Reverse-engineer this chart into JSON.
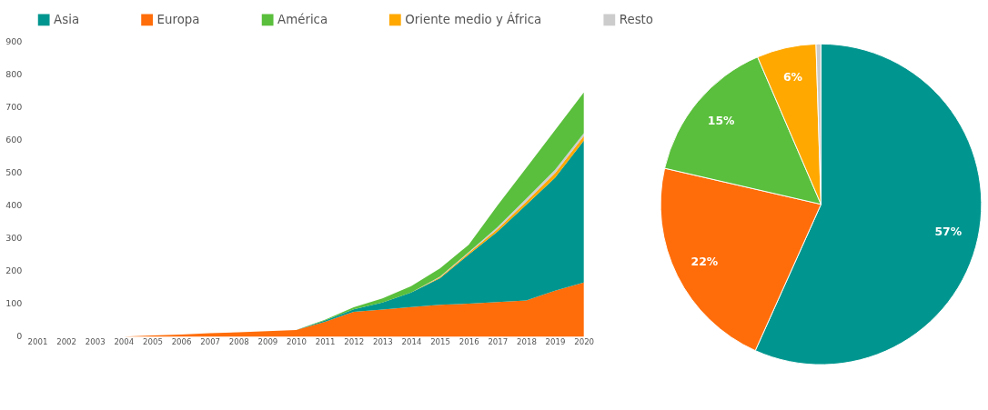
{
  "chart_data": [
    {
      "type": "area",
      "stacked": true,
      "x": [
        2001,
        2002,
        2003,
        2004,
        2005,
        2006,
        2007,
        2008,
        2009,
        2010,
        2011,
        2012,
        2013,
        2014,
        2015,
        2016,
        2017,
        2018,
        2019,
        2020
      ],
      "series": [
        {
          "name": "Europa",
          "color": "#ff6d0a",
          "values": [
            0,
            0,
            0,
            0,
            3,
            6,
            10,
            13,
            16,
            20,
            45,
            75,
            82,
            90,
            97,
            100,
            105,
            110,
            140,
            165
          ]
        },
        {
          "name": "Asia",
          "color": "#00968f",
          "values": [
            0,
            0,
            0,
            0,
            0,
            0,
            0,
            0,
            0,
            0,
            4,
            8,
            22,
            44,
            81,
            150,
            215,
            292,
            345,
            433
          ]
        },
        {
          "name": "Oriente medio y África",
          "color": "#ffa800",
          "values": [
            0,
            0,
            0,
            0,
            0,
            0,
            0,
            0,
            0,
            0,
            0,
            0,
            0,
            0,
            3,
            5,
            8,
            10,
            14,
            14
          ]
        },
        {
          "name": "Resto",
          "color": "#cccccc",
          "values": [
            0,
            0,
            0,
            0,
            0,
            0,
            0,
            0,
            0,
            0,
            0,
            0,
            0,
            0,
            2,
            3,
            6,
            9,
            10,
            9
          ]
        },
        {
          "name": "América",
          "color": "#5abf3c",
          "values": [
            0,
            0,
            0,
            0,
            0,
            0,
            0,
            0,
            0,
            0,
            2,
            6,
            12,
            20,
            25,
            22,
            66,
            94,
            121,
            124
          ]
        }
      ],
      "xlim": [
        2001,
        2020
      ],
      "xticks": [
        2001,
        2002,
        2003,
        2004,
        2005,
        2006,
        2007,
        2008,
        2009,
        2010,
        2011,
        2012,
        2013,
        2014,
        2015,
        2016,
        2017,
        2018,
        2019,
        2020
      ],
      "ylim": [
        0,
        900
      ],
      "yticks": [
        0,
        100,
        200,
        300,
        400,
        500,
        600,
        700,
        800,
        900
      ],
      "grid": false,
      "legend": "top"
    },
    {
      "type": "pie",
      "categories": [
        null,
        null,
        null,
        null,
        null
      ],
      "values": [
        57,
        22,
        15,
        6,
        0.5
      ],
      "colors": [
        "#00968f",
        "#ff6d0a",
        "#5abf3c",
        "#ffa800",
        "#cccccc"
      ],
      "value_labels": [
        "57%",
        "22%",
        "15%",
        "6%",
        null
      ]
    }
  ]
}
